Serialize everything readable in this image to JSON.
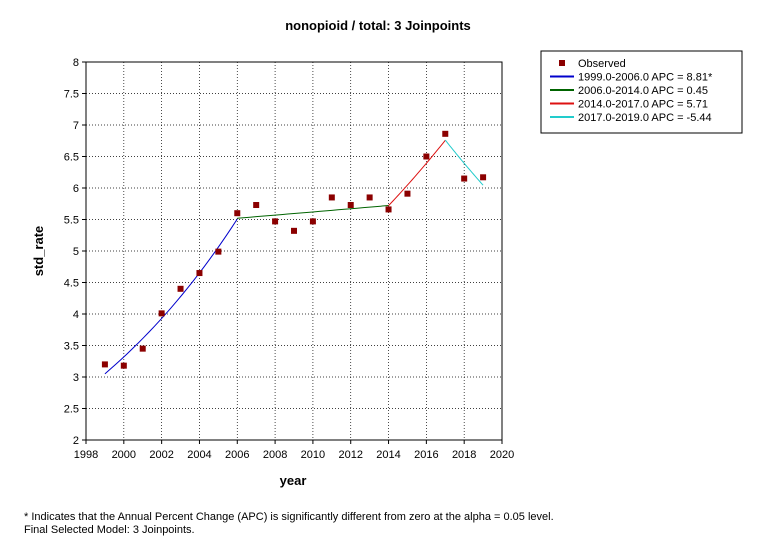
{
  "chart_data": {
    "type": "line",
    "title": "nonopioid / total: 3 Joinpoints",
    "xlabel": "year",
    "ylabel": "std_rate",
    "xlim": [
      1998,
      2020
    ],
    "ylim": [
      2,
      8
    ],
    "x_ticks": [
      "1998",
      "2000",
      "2002",
      "2004",
      "2006",
      "2008",
      "2010",
      "2012",
      "2014",
      "2016",
      "2018",
      "2020"
    ],
    "y_ticks": [
      "2",
      "2.5",
      "3",
      "3.5",
      "4",
      "4.5",
      "5",
      "5.5",
      "6",
      "6.5",
      "7",
      "7.5",
      "8"
    ],
    "grid": true,
    "legend_position": "top-right outside plot",
    "observed": {
      "name": "Observed",
      "color": "#8b0000",
      "points": [
        {
          "x": 1999,
          "y": 3.2
        },
        {
          "x": 2000,
          "y": 3.18
        },
        {
          "x": 2001,
          "y": 3.45
        },
        {
          "x": 2002,
          "y": 4.01
        },
        {
          "x": 2003,
          "y": 4.4
        },
        {
          "x": 2004,
          "y": 4.65
        },
        {
          "x": 2005,
          "y": 4.99
        },
        {
          "x": 2006,
          "y": 5.6
        },
        {
          "x": 2007,
          "y": 5.73
        },
        {
          "x": 2008,
          "y": 5.47
        },
        {
          "x": 2009,
          "y": 5.32
        },
        {
          "x": 2010,
          "y": 5.47
        },
        {
          "x": 2011,
          "y": 5.85
        },
        {
          "x": 2012,
          "y": 5.73
        },
        {
          "x": 2013,
          "y": 5.85
        },
        {
          "x": 2014,
          "y": 5.66
        },
        {
          "x": 2015,
          "y": 5.91
        },
        {
          "x": 2016,
          "y": 6.5
        },
        {
          "x": 2017,
          "y": 6.86
        },
        {
          "x": 2018,
          "y": 6.15
        },
        {
          "x": 2019,
          "y": 6.17
        }
      ]
    },
    "segments": [
      {
        "name": "1999.0-2006.0 APC  =  8.81*",
        "color": "#0000cc",
        "apc": 8.81,
        "x0": 1999,
        "x1": 2006,
        "y0": 3.05
      },
      {
        "name": "2006.0-2014.0 APC  =  0.45",
        "color": "#006400",
        "apc": 0.45,
        "x0": 2006,
        "x1": 2014,
        "y0": 5.52
      },
      {
        "name": "2014.0-2017.0 APC  =  5.71",
        "color": "#dd1111",
        "apc": 5.71,
        "x0": 2014,
        "x1": 2017,
        "y0": 5.72
      },
      {
        "name": "2017.0-2019.0 APC  = -5.44",
        "color": "#22cccc",
        "apc": -5.44,
        "x0": 2017,
        "x1": 2019,
        "y0": 6.76
      }
    ]
  },
  "footnotes": {
    "line1": "* Indicates that the Annual Percent Change (APC) is significantly different from zero at the alpha = 0.05 level.",
    "line2": "Final Selected Model: 3 Joinpoints."
  }
}
